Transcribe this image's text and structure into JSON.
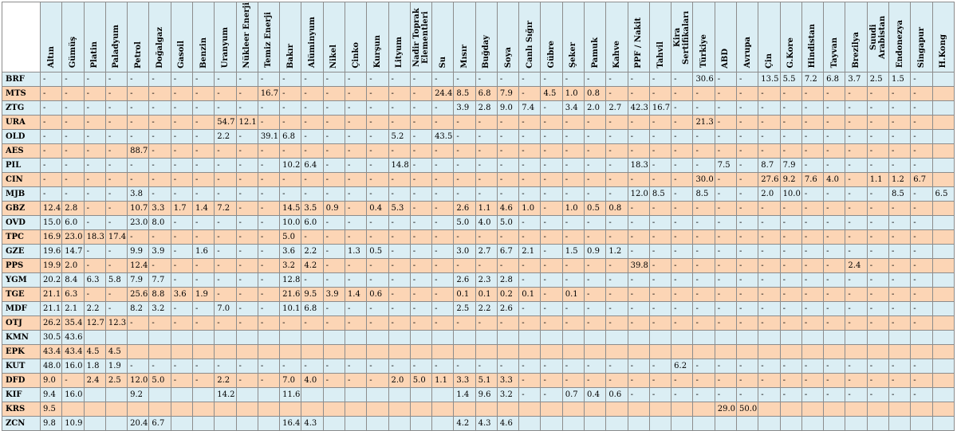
{
  "corner_label": "",
  "columns": [
    "Altın",
    "Gümüş",
    "Platin",
    "Paladyum",
    "Petrol",
    "Doğalgaz",
    "Gasoil",
    "Benzin",
    "Uranyum",
    "Nükleer Enerji",
    "Temiz Enerji",
    "Bakır",
    "Alüminyum",
    "Nikel",
    "Çinko",
    "Kurşun",
    "Lityum",
    "Nadir Toprak Elementleri",
    "Su",
    "Mısır",
    "Buğday",
    "Soya",
    "Canlı Sığır",
    "Gübre",
    "Şeker",
    "Pamuk",
    "Kahve",
    "PPF / Nakit",
    "Tahvil",
    "Kira Sertifikaları",
    "Türkiye",
    "ABD",
    "Avrupa",
    "Çin",
    "G.Kore",
    "Hindistan",
    "Tayvan",
    "Brezilya",
    "Suudi Arabistan",
    "Endonezya",
    "Singapur",
    "H.Kong"
  ],
  "rows": [
    {
      "code": "BRF",
      "values": [
        "-",
        "-",
        "-",
        "-",
        "-",
        "-",
        "-",
        "-",
        "-",
        "-",
        "-",
        "-",
        "-",
        "-",
        "-",
        "-",
        "-",
        "-",
        "-",
        "-",
        "-",
        "-",
        "-",
        "-",
        "-",
        "-",
        "-",
        "-",
        "-",
        "-",
        "30.6",
        "-",
        "-",
        "13.5",
        "5.5",
        "7.2",
        "6.8",
        "3.7",
        "2.5",
        "1.5",
        "-",
        ""
      ]
    },
    {
      "code": "MTS",
      "values": [
        "-",
        "-",
        "-",
        "-",
        "-",
        "-",
        "-",
        "-",
        "-",
        "-",
        "16.7",
        "-",
        "-",
        "-",
        "-",
        "-",
        "-",
        "-",
        "24.4",
        "8.5",
        "6.8",
        "7.9",
        "-",
        "4.5",
        "1.0",
        "0.8",
        "-",
        "-",
        "-",
        "-",
        "-",
        "-",
        "-",
        "-",
        "-",
        "-",
        "-",
        "-",
        "-",
        "-",
        "-",
        ""
      ]
    },
    {
      "code": "ZTG",
      "values": [
        "-",
        "-",
        "-",
        "-",
        "-",
        "-",
        "-",
        "-",
        "-",
        "-",
        "-",
        "-",
        "-",
        "-",
        "-",
        "-",
        "-",
        "-",
        "-",
        "3.9",
        "2.8",
        "9.0",
        "7.4",
        "-",
        "3.4",
        "2.0",
        "2.7",
        "42.3",
        "16.7",
        "-",
        "-",
        "-",
        "-",
        "-",
        "-",
        "-",
        "-",
        "-",
        "-",
        "-",
        "-",
        ""
      ]
    },
    {
      "code": "URA",
      "values": [
        "-",
        "-",
        "-",
        "-",
        "-",
        "-",
        "-",
        "-",
        "54.7",
        "12.1",
        "-",
        "-",
        "-",
        "-",
        "-",
        "-",
        "-",
        "-",
        "-",
        "-",
        "-",
        "-",
        "-",
        "-",
        "-",
        "-",
        "-",
        "-",
        "-",
        "-",
        "21.3",
        "-",
        "-",
        "-",
        "-",
        "-",
        "-",
        "-",
        "-",
        "-",
        "-",
        ""
      ]
    },
    {
      "code": "OLD",
      "values": [
        "-",
        "-",
        "-",
        "-",
        "-",
        "-",
        "-",
        "-",
        "2.2",
        "-",
        "39.1",
        "6.8",
        "-",
        "-",
        "-",
        "-",
        "5.2",
        "-",
        "43.5",
        "-",
        "-",
        "-",
        "-",
        "-",
        "-",
        "-",
        "-",
        "-",
        "-",
        "-",
        "-",
        "-",
        "-",
        "-",
        "-",
        "-",
        "-",
        "-",
        "-",
        "-",
        "-",
        ""
      ]
    },
    {
      "code": "AES",
      "values": [
        "-",
        "-",
        "-",
        "-",
        "88.7",
        "-",
        "-",
        "-",
        "-",
        "-",
        "-",
        "-",
        "-",
        "-",
        "-",
        "-",
        "-",
        "-",
        "-",
        "-",
        "-",
        "-",
        "-",
        "-",
        "-",
        "-",
        "-",
        "-",
        "-",
        "-",
        "-",
        "-",
        "-",
        "-",
        "-",
        "-",
        "-",
        "-",
        "-",
        "-",
        "-",
        ""
      ]
    },
    {
      "code": "PIL",
      "values": [
        "-",
        "-",
        "-",
        "-",
        "-",
        "-",
        "-",
        "-",
        "-",
        "-",
        "-",
        "10.2",
        "6.4",
        "-",
        "-",
        "-",
        "14.8",
        "-",
        "-",
        "-",
        "-",
        "-",
        "-",
        "-",
        "-",
        "-",
        "-",
        "18.3",
        "-",
        "-",
        "-",
        "7.5",
        "-",
        "8.7",
        "7.9",
        "-",
        "-",
        "-",
        "-",
        "-",
        "-",
        ""
      ]
    },
    {
      "code": "CIN",
      "values": [
        "-",
        "-",
        "-",
        "-",
        "-",
        "-",
        "-",
        "-",
        "-",
        "-",
        "-",
        "-",
        "-",
        "-",
        "-",
        "-",
        "-",
        "-",
        "-",
        "-",
        "-",
        "-",
        "-",
        "-",
        "-",
        "-",
        "-",
        "-",
        "-",
        "-",
        "30.0",
        "-",
        "-",
        "27.6",
        "9.2",
        "7.6",
        "4.0",
        "-",
        "1.1",
        "1.2",
        "6.7",
        ""
      ]
    },
    {
      "code": "MJB",
      "values": [
        "-",
        "-",
        "-",
        "-",
        "3.8",
        "-",
        "-",
        "-",
        "-",
        "-",
        "-",
        "-",
        "-",
        "-",
        "-",
        "-",
        "-",
        "-",
        "-",
        "-",
        "-",
        "-",
        "-",
        "-",
        "-",
        "-",
        "-",
        "12.0",
        "8.5",
        "-",
        "8.5",
        "-",
        "-",
        "2.0",
        "10.0",
        "-",
        "-",
        "-",
        "-",
        "8.5",
        "-",
        "6.5"
      ]
    },
    {
      "code": "GBZ",
      "values": [
        "12.4",
        "2.8",
        "-",
        "-",
        "10.7",
        "3.3",
        "1.7",
        "1.4",
        "7.2",
        "-",
        "-",
        "14.5",
        "3.5",
        "0.9",
        "-",
        "0.4",
        "5.3",
        "-",
        "-",
        "2.6",
        "1.1",
        "4.6",
        "1.0",
        "-",
        "1.0",
        "0.5",
        "0.8",
        "-",
        "-",
        "-",
        "-",
        "-",
        "-",
        "-",
        "-",
        "-",
        "-",
        "-",
        "-",
        "-",
        "-",
        ""
      ]
    },
    {
      "code": "OVD",
      "values": [
        "15.0",
        "6.0",
        "-",
        "-",
        "23.0",
        "8.0",
        "-",
        "-",
        "-",
        "-",
        "-",
        "10.0",
        "6.0",
        "-",
        "-",
        "-",
        "-",
        "-",
        "-",
        "5.0",
        "4.0",
        "5.0",
        "-",
        "-",
        "-",
        "-",
        "-",
        "-",
        "-",
        "-",
        "-",
        "-",
        "-",
        "-",
        "-",
        "-",
        "-",
        "-",
        "-",
        "-",
        "-",
        ""
      ]
    },
    {
      "code": "TPC",
      "values": [
        "16.9",
        "23.0",
        "18.3",
        "17.4",
        "-",
        "-",
        "-",
        "-",
        "-",
        "-",
        "-",
        "5.0",
        "-",
        "-",
        "-",
        "-",
        "-",
        "-",
        "-",
        "-",
        "-",
        "-",
        "-",
        "-",
        "-",
        "-",
        "-",
        "-",
        "-",
        "-",
        "-",
        "-",
        "-",
        "-",
        "-",
        "-",
        "-",
        "-",
        "-",
        "-",
        "-",
        ""
      ]
    },
    {
      "code": "GZE",
      "values": [
        "19.6",
        "14.7",
        "-",
        "-",
        "9.9",
        "3.9",
        "-",
        "1.6",
        "-",
        "-",
        "-",
        "3.6",
        "2.2",
        "-",
        "1.3",
        "0.5",
        "-",
        "-",
        "-",
        "3.0",
        "2.7",
        "6.7",
        "2.1",
        "-",
        "1.5",
        "0.9",
        "1.2",
        "-",
        "-",
        "-",
        "-",
        "-",
        "-",
        "-",
        "-",
        "-",
        "-",
        "-",
        "-",
        "-",
        "-",
        ""
      ]
    },
    {
      "code": "PPS",
      "values": [
        "19.9",
        "2.0",
        "-",
        "-",
        "12.4",
        "-",
        "-",
        "-",
        "-",
        "-",
        "-",
        "3.2",
        "4.2",
        "-",
        "-",
        "-",
        "-",
        "-",
        "-",
        "-",
        "-",
        "-",
        "-",
        "-",
        "-",
        "-",
        "-",
        "39.8",
        "-",
        "-",
        "-",
        "-",
        "-",
        "-",
        "-",
        "-",
        "-",
        "2.4",
        "-",
        "-",
        "-",
        ""
      ]
    },
    {
      "code": "YGM",
      "values": [
        "20.2",
        "8.4",
        "6.3",
        "5.8",
        "7.9",
        "7.7",
        "-",
        "-",
        "-",
        "-",
        "-",
        "12.8",
        "-",
        "-",
        "-",
        "-",
        "-",
        "-",
        "-",
        "2.6",
        "2.3",
        "2.8",
        "-",
        "-",
        "-",
        "-",
        "-",
        "-",
        "-",
        "-",
        "-",
        "-",
        "-",
        "-",
        "-",
        "-",
        "-",
        "-",
        "-",
        "-",
        "-",
        ""
      ]
    },
    {
      "code": "TGE",
      "values": [
        "21.1",
        "6.3",
        "-",
        "-",
        "25.6",
        "8.8",
        "3.6",
        "1.9",
        "-",
        "-",
        "-",
        "21.6",
        "9.5",
        "3.9",
        "1.4",
        "0.6",
        "-",
        "-",
        "-",
        "0.1",
        "0.1",
        "0.2",
        "0.1",
        "-",
        "0.1",
        "-",
        "-",
        "-",
        "-",
        "-",
        "-",
        "-",
        "-",
        "-",
        "-",
        "-",
        "-",
        "-",
        "-",
        "-",
        "-",
        ""
      ]
    },
    {
      "code": "MDF",
      "values": [
        "21.1",
        "2.1",
        "2.2",
        "-",
        "8.2",
        "3.2",
        "-",
        "-",
        "7.0",
        "-",
        "-",
        "10.1",
        "6.8",
        "-",
        "-",
        "-",
        "-",
        "-",
        "-",
        "2.5",
        "2.2",
        "2.6",
        "-",
        "-",
        "-",
        "-",
        "-",
        "-",
        "-",
        "-",
        "-",
        "-",
        "-",
        "-",
        "-",
        "-",
        "-",
        "-",
        "-",
        "-",
        "-",
        ""
      ]
    },
    {
      "code": "OTJ",
      "values": [
        "26.2",
        "35.4",
        "12.7",
        "12.3",
        "-",
        "-",
        "-",
        "-",
        "-",
        "-",
        "-",
        "-",
        "-",
        "-",
        "-",
        "-",
        "-",
        "-",
        "-",
        "-",
        "-",
        "-",
        "-",
        "-",
        "-",
        "-",
        "-",
        "-",
        "-",
        "-",
        "-",
        "-",
        "-",
        "-",
        "-",
        "-",
        "-",
        "-",
        "-",
        "-",
        "-",
        ""
      ]
    },
    {
      "code": "KMN",
      "values": [
        "30.5",
        "43.6",
        "",
        "",
        "",
        "",
        "",
        "",
        "",
        "",
        "",
        "",
        "",
        "",
        "",
        "",
        "",
        "",
        "",
        "",
        "",
        "",
        "",
        "",
        "",
        "",
        "",
        "",
        "",
        "",
        "",
        "",
        "",
        "",
        "",
        "",
        "",
        "",
        "",
        "",
        "",
        ""
      ]
    },
    {
      "code": "EPK",
      "values": [
        "43.4",
        "43.4",
        "4.5",
        "4.5",
        "",
        "",
        "",
        "",
        "",
        "",
        "",
        "",
        "",
        "",
        "",
        "",
        "",
        "",
        "",
        "",
        "",
        "",
        "",
        "",
        "",
        "",
        "",
        "",
        "",
        "",
        "",
        "",
        "",
        "",
        "",
        "",
        "",
        "",
        "",
        "",
        "",
        ""
      ]
    },
    {
      "code": "KUT",
      "values": [
        "48.0",
        "16.0",
        "1.8",
        "1.9",
        "-",
        "-",
        "-",
        "-",
        "-",
        "-",
        "-",
        "-",
        "-",
        "-",
        "-",
        "-",
        "-",
        "-",
        "-",
        "-",
        "-",
        "-",
        "-",
        "-",
        "-",
        "-",
        "-",
        "-",
        "-",
        "6.2",
        "-",
        "-",
        "-",
        "-",
        "-",
        "-",
        "-",
        "-",
        "-",
        "-",
        "-",
        ""
      ]
    },
    {
      "code": "DFD",
      "values": [
        "9.0",
        "-",
        "2.4",
        "2.5",
        "12.0",
        "5.0",
        "-",
        "-",
        "2.2",
        "-",
        "-",
        "7.0",
        "4.0",
        "-",
        "-",
        "-",
        "2.0",
        "5.0",
        "1.1",
        "3.3",
        "5.1",
        "3.3",
        "-",
        "-",
        "-",
        "-",
        "-",
        "-",
        "-",
        "-",
        "-",
        "-",
        "-",
        "-",
        "-",
        "-",
        "-",
        "-",
        "-",
        "-",
        "-",
        ""
      ]
    },
    {
      "code": "KIF",
      "values": [
        "9.4",
        "16.0",
        "",
        "",
        "9.2",
        "",
        "",
        "",
        "14.2",
        "",
        "",
        "11.6",
        "",
        "",
        "",
        "",
        "",
        "",
        "",
        "1.4",
        "9.6",
        "3.2",
        "-",
        "-",
        "0.7",
        "0.4",
        "0.6",
        "-",
        "-",
        "-",
        "-",
        "-",
        "-",
        "-",
        "-",
        "-",
        "-",
        "-",
        "-",
        "-",
        "-",
        ""
      ]
    },
    {
      "code": "KRS",
      "values": [
        "9.5",
        "",
        "",
        "",
        "",
        "",
        "",
        "",
        "",
        "",
        "",
        "",
        "",
        "",
        "",
        "",
        "",
        "",
        "",
        "",
        "",
        "",
        "",
        "",
        "",
        "",
        "",
        "",
        "",
        "",
        "",
        "29.0",
        "50.0",
        "",
        "",
        "",
        "",
        "",
        "",
        "",
        "",
        ""
      ]
    },
    {
      "code": "ZCN",
      "values": [
        "9.8",
        "10.9",
        "",
        "",
        "20.4",
        "6.7",
        "",
        "",
        "",
        "",
        "",
        "16.4",
        "4.3",
        "",
        "",
        "",
        "",
        "",
        "",
        "4.2",
        "4.3",
        "4.6",
        "",
        "",
        "",
        "",
        "",
        "",
        "",
        "",
        "",
        "",
        "",
        "",
        "",
        "",
        "",
        "",
        "",
        "",
        "",
        ""
      ]
    }
  ],
  "row_colors": [
    "blue",
    "peach",
    "blue",
    "peach",
    "blue",
    "peach",
    "blue",
    "peach",
    "blue",
    "peach",
    "blue",
    "peach",
    "blue",
    "peach",
    "blue",
    "peach",
    "blue",
    "peach",
    "blue",
    "peach",
    "blue",
    "peach",
    "blue",
    "peach",
    "blue"
  ]
}
